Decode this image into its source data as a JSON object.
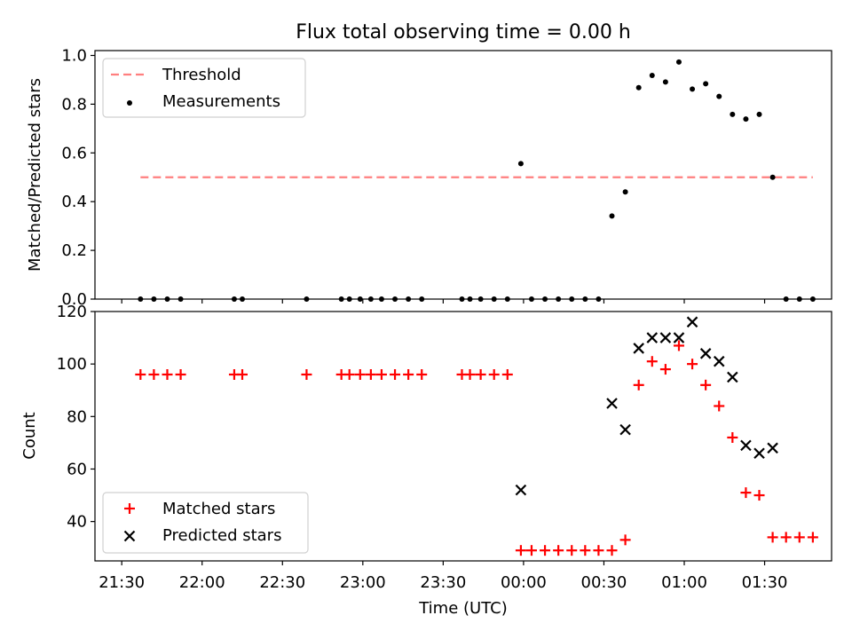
{
  "chart_data": [
    {
      "type": "scatter",
      "title": "Flux total observing time = 0.00 h",
      "xlabel": "",
      "ylabel": "Matched/Predicted stars",
      "ylim": [
        0,
        1.02
      ],
      "yticks": [
        "0.0",
        "0.2",
        "0.4",
        "0.6",
        "0.8",
        "1.0"
      ],
      "legend_position": "top-left",
      "threshold": {
        "name": "Threshold",
        "value": 0.5,
        "x_start": "21:37",
        "x_end": "01:48",
        "color": "#ff7f7f"
      },
      "series": [
        {
          "name": "Measurements",
          "color": "#000000",
          "marker": "dot",
          "x": [
            "21:37",
            "21:42",
            "21:47",
            "21:52",
            "22:12",
            "22:15",
            "22:39",
            "22:52",
            "22:55",
            "22:59",
            "23:03",
            "23:07",
            "23:12",
            "23:17",
            "23:22",
            "23:37",
            "23:40",
            "23:44",
            "23:49",
            "23:54",
            "23:59",
            "00:03",
            "00:08",
            "00:13",
            "00:18",
            "00:23",
            "00:28",
            "00:33",
            "00:38",
            "00:43",
            "00:48",
            "00:53",
            "00:58",
            "01:03",
            "01:08",
            "01:13",
            "01:18",
            "01:23",
            "01:28",
            "01:33",
            "01:38",
            "01:43",
            "01:48"
          ],
          "y": [
            0,
            0,
            0,
            0,
            0,
            0,
            0,
            0,
            0,
            0,
            0,
            0,
            0,
            0,
            0,
            0,
            0,
            0,
            0,
            0,
            0.556,
            0,
            0,
            0,
            0,
            0,
            0,
            0.341,
            0.44,
            0.868,
            0.918,
            0.891,
            0.973,
            0.862,
            0.884,
            0.832,
            0.758,
            0.739,
            0.758,
            0.5,
            0,
            0,
            0
          ]
        }
      ]
    },
    {
      "type": "scatter",
      "title": "",
      "xlabel": "Time (UTC)",
      "ylabel": "Count",
      "ylim": [
        25,
        120
      ],
      "yticks": [
        "40",
        "60",
        "80",
        "100",
        "120"
      ],
      "xticks": [
        "21:30",
        "22:00",
        "22:30",
        "23:00",
        "23:30",
        "00:00",
        "00:30",
        "01:00",
        "01:30"
      ],
      "legend_position": "bottom-left",
      "series": [
        {
          "name": "Matched stars",
          "color": "#ff0000",
          "marker": "plus",
          "x": [
            "21:37",
            "21:42",
            "21:47",
            "21:52",
            "22:12",
            "22:15",
            "22:39",
            "22:52",
            "22:55",
            "22:59",
            "23:03",
            "23:07",
            "23:12",
            "23:17",
            "23:22",
            "23:37",
            "23:40",
            "23:44",
            "23:49",
            "23:54",
            "23:59",
            "00:03",
            "00:08",
            "00:13",
            "00:18",
            "00:23",
            "00:28",
            "00:33",
            "00:38",
            "00:43",
            "00:48",
            "00:53",
            "00:58",
            "01:03",
            "01:08",
            "01:13",
            "01:18",
            "01:23",
            "01:28",
            "01:33",
            "01:38",
            "01:43",
            "01:48"
          ],
          "y": [
            96,
            96,
            96,
            96,
            96,
            96,
            96,
            96,
            96,
            96,
            96,
            96,
            96,
            96,
            96,
            96,
            96,
            96,
            96,
            96,
            29,
            29,
            29,
            29,
            29,
            29,
            29,
            29,
            33,
            92,
            101,
            98,
            107,
            100,
            92,
            84,
            72,
            51,
            50,
            34,
            34,
            34,
            34
          ]
        },
        {
          "name": "Predicted stars",
          "color": "#000000",
          "marker": "cross",
          "x": [
            "23:59",
            "00:33",
            "00:38",
            "00:43",
            "00:48",
            "00:53",
            "00:58",
            "01:03",
            "01:08",
            "01:13",
            "01:18",
            "01:23",
            "01:28",
            "01:33"
          ],
          "y": [
            52,
            85,
            75,
            106,
            110,
            110,
            110,
            116,
            104,
            101,
            95,
            69,
            66,
            68
          ]
        }
      ]
    }
  ]
}
